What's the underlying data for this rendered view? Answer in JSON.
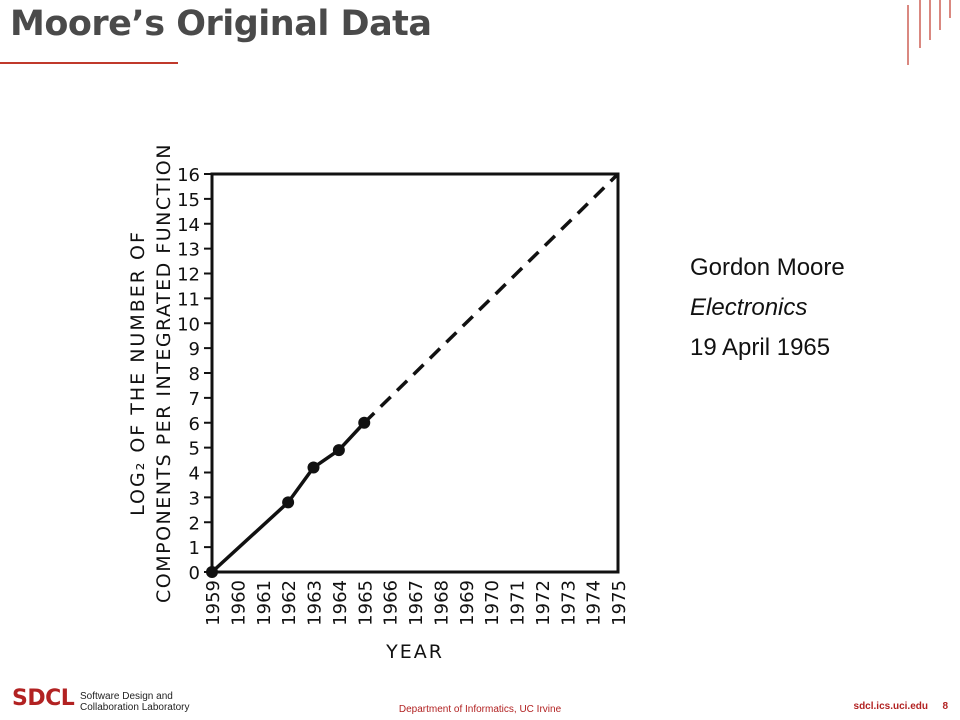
{
  "slide": {
    "title": "Moore’s Original Data",
    "citation": {
      "author": "Gordon Moore",
      "publication": "Electronics",
      "date": "19 April 1965"
    },
    "footer": {
      "logo": "SDCL",
      "logo_line1": "Software Design and",
      "logo_line2": "Collaboration Laboratory",
      "department": "Department of Informatics, UC Irvine",
      "url": "sdcl.ics.uci.edu",
      "page": "8"
    },
    "accent_color": "#b22222"
  },
  "chart_data": {
    "type": "line",
    "ylabel_line1": "LOG₂ OF THE NUMBER OF",
    "ylabel_line2": "COMPONENTS PER INTEGRATED FUNCTION",
    "xlabel": "YEAR",
    "x_ticks": [
      "1959",
      "1960",
      "1961",
      "1962",
      "1963",
      "1964",
      "1965",
      "1966",
      "1967",
      "1968",
      "1969",
      "1970",
      "1971",
      "1972",
      "1973",
      "1974",
      "1975"
    ],
    "y_ticks": [
      "0",
      "1",
      "2",
      "3",
      "4",
      "5",
      "6",
      "7",
      "8",
      "9",
      "10",
      "11",
      "12",
      "13",
      "14",
      "15",
      "16"
    ],
    "xlim": [
      1959,
      1975
    ],
    "ylim": [
      0,
      16
    ],
    "series": [
      {
        "style": "solid-with-markers",
        "points": [
          [
            1959,
            0
          ],
          [
            1962,
            2.8
          ],
          [
            1963,
            4.2
          ],
          [
            1964,
            4.9
          ],
          [
            1965,
            6
          ]
        ]
      },
      {
        "style": "dashed-extrapolation",
        "points": [
          [
            1965,
            6
          ],
          [
            1975,
            16
          ]
        ]
      }
    ]
  }
}
